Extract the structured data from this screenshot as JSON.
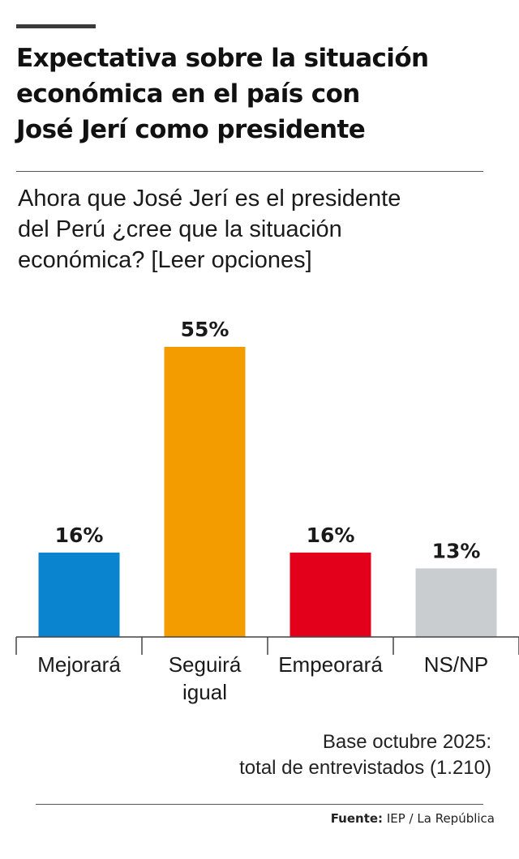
{
  "title_lines": [
    "Expectativa sobre la situación",
    "económica en el país con",
    "José Jerí como presidente"
  ],
  "question_lines": [
    "Ahora que José Jerí es el presidente",
    "del Perú ¿cree que la situación",
    "económica? [Leer opciones]"
  ],
  "chart_data": {
    "type": "bar",
    "categories": [
      [
        "Mejorará"
      ],
      [
        "Seguirá",
        "igual"
      ],
      [
        "Empeorará"
      ],
      [
        "NS/NP"
      ]
    ],
    "values": [
      16,
      55,
      16,
      13
    ],
    "value_labels": [
      "16%",
      "55%",
      "16%",
      "13%"
    ],
    "colors": [
      "#0a84cf",
      "#f39c00",
      "#e2001a",
      "#c9cdd0"
    ],
    "ylim": [
      0,
      55
    ],
    "grid": false,
    "legend": "none"
  },
  "note_lines": [
    "Base octubre 2025:",
    "total de entrevistados (1.210)"
  ],
  "source": {
    "label": "Fuente:",
    "text": "IEP / La República"
  }
}
